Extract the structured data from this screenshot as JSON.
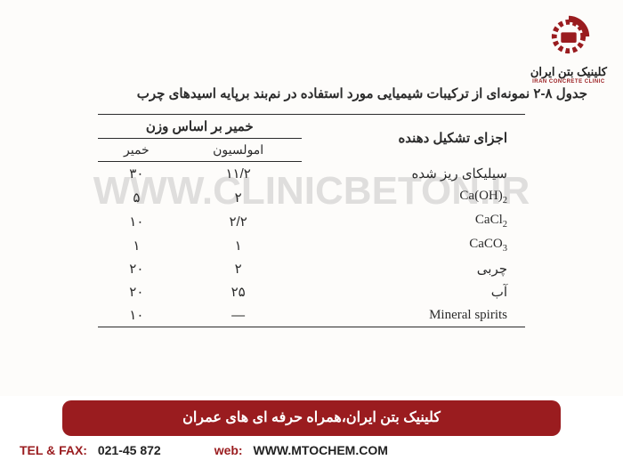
{
  "logo": {
    "text_fa": "کلینیک بتن ایران",
    "text_en": "IRAN CONCRETE CLINIC",
    "gear_color": "#9a1c1f"
  },
  "caption": "جدول ۸-۲ نمونه‌ای از ترکیبات شیمیایی مورد استفاده در نم‌بند برپایه اسیدهای چرب",
  "watermark": "WWW.CLINICBETON.IR",
  "table": {
    "header_component": "اجزای تشکیل دهنده",
    "header_span": "خمیر بر اساس وزن",
    "header_sub_emulsion": "امولسیون",
    "header_sub_paste": "خمیر",
    "rows": [
      {
        "component": "سیلیکای ریز شده",
        "latin": false,
        "emulsion": "۱۱/۲",
        "paste": "۳۰"
      },
      {
        "component": "Ca(OH)₂",
        "latin": true,
        "emulsion": "۲",
        "paste": "۵"
      },
      {
        "component": "CaCl₂",
        "latin": true,
        "emulsion": "۲/۲",
        "paste": "۱۰"
      },
      {
        "component": "CaCO₃",
        "latin": true,
        "emulsion": "۱",
        "paste": "۱"
      },
      {
        "component": "چربی",
        "latin": false,
        "emulsion": "۲",
        "paste": "۲۰"
      },
      {
        "component": "آب",
        "latin": false,
        "emulsion": "۲۵",
        "paste": "۲۰"
      },
      {
        "component": "Mineral spirits",
        "latin": true,
        "emulsion": "—",
        "paste": "۱۰"
      }
    ]
  },
  "banner": "کلینیک بتن ایران،همراه حرفه ای های عمران",
  "footer": {
    "tel_label": "TEL & FAX:",
    "tel_value": "021-45 872",
    "web_label": "web:",
    "web_value": "WWW.MTOCHEM.COM"
  }
}
